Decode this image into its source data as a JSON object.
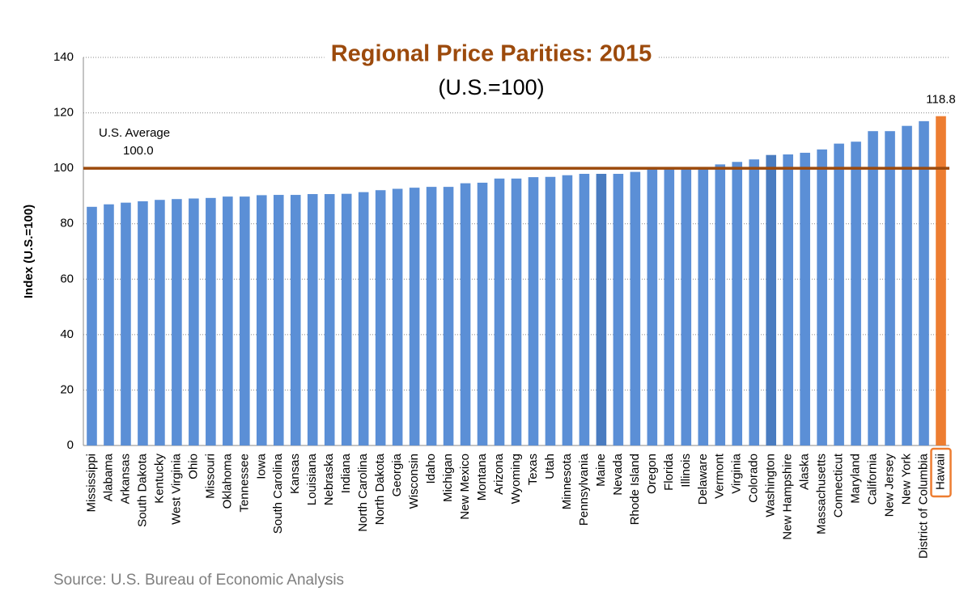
{
  "chart_data": {
    "type": "bar",
    "title": "Regional Price Parities: 2015",
    "subtitle": "(U.S.=100)",
    "y_label": "Index (U.S.=100)",
    "source": "Source: U.S. Bureau of Economic Analysis",
    "categories": [
      "Mississippi",
      "Alabama",
      "Arkansas",
      "South Dakota",
      "Kentucky",
      "West Virginia",
      "Ohio",
      "Missouri",
      "Oklahoma",
      "Tennessee",
      "Iowa",
      "South Carolina",
      "Kansas",
      "Louisiana",
      "Nebraska",
      "Indiana",
      "North Carolina",
      "North Dakota",
      "Georgia",
      "Wisconsin",
      "Idaho",
      "Michigan",
      "New Mexico",
      "Montana",
      "Arizona",
      "Wyoming",
      "Texas",
      "Utah",
      "Minnesota",
      "Pennsylvania",
      "Maine",
      "Nevada",
      "Rhode Island",
      "Oregon",
      "Florida",
      "Illinois",
      "Delaware",
      "Vermont",
      "Virginia",
      "Colorado",
      "Washington",
      "New Hampshire",
      "Alaska",
      "Massachusetts",
      "Connecticut",
      "Maryland",
      "California",
      "New Jersey",
      "New York",
      "District of Columbia",
      "Hawaii"
    ],
    "values": [
      86.1,
      87.0,
      87.6,
      88.1,
      88.6,
      88.9,
      89.1,
      89.3,
      89.8,
      89.8,
      90.3,
      90.4,
      90.4,
      90.7,
      90.7,
      90.8,
      91.4,
      92.1,
      92.6,
      93.0,
      93.3,
      93.3,
      94.6,
      94.8,
      96.3,
      96.3,
      96.8,
      96.9,
      97.5,
      98.0,
      98.0,
      98.0,
      98.7,
      99.6,
      99.9,
      100.0,
      100.0,
      101.4,
      102.3,
      103.2,
      104.8,
      105.0,
      105.6,
      106.8,
      108.9,
      109.6,
      113.4,
      113.4,
      115.3,
      117.0,
      118.8
    ],
    "value_labels": [
      null,
      null,
      null,
      null,
      null,
      null,
      null,
      null,
      null,
      null,
      null,
      null,
      null,
      null,
      null,
      null,
      null,
      null,
      null,
      null,
      null,
      null,
      null,
      null,
      null,
      null,
      null,
      null,
      null,
      null,
      null,
      null,
      null,
      null,
      null,
      null,
      null,
      null,
      null,
      null,
      null,
      null,
      null,
      null,
      null,
      null,
      null,
      null,
      null,
      null,
      "118.8"
    ],
    "color": "#5b8fd6",
    "highlight_color": "#ed7d31",
    "colors": [
      "#5b8fd6",
      "#5b8fd6",
      "#5b8fd6",
      "#5b8fd6",
      "#5b8fd6",
      "#5b8fd6",
      "#5b8fd6",
      "#5b8fd6",
      "#5b8fd6",
      "#5b8fd6",
      "#5b8fd6",
      "#5b8fd6",
      "#5b8fd6",
      "#5b8fd6",
      "#5b8fd6",
      "#5b8fd6",
      "#5b8fd6",
      "#5b8fd6",
      "#5b8fd6",
      "#5b8fd6",
      "#5b8fd6",
      "#5b8fd6",
      "#5b8fd6",
      "#5b8fd6",
      "#5b8fd6",
      "#5b8fd6",
      "#5b8fd6",
      "#5b8fd6",
      "#5b8fd6",
      "#5b8fd6",
      "#4a7cc0",
      "#5b8fd6",
      "#5b8fd6",
      "#5b8fd6",
      "#5b8fd6",
      "#5b8fd6",
      "#5b8fd6",
      "#5b8fd6",
      "#5b8fd6",
      "#5b8fd6",
      "#4a7cc0",
      "#5b8fd6",
      "#5b8fd6",
      "#5b8fd6",
      "#5b8fd6",
      "#5b8fd6",
      "#5b8fd6",
      "#5b8fd6",
      "#5b8fd6",
      "#5b8fd6",
      "#ed7d31"
    ],
    "reference_line": {
      "name": "U.S. Average",
      "value": 100,
      "value_label": "100.0",
      "color": "#9c4a0c"
    },
    "ylim": [
      0,
      140
    ],
    "yticks": [
      0,
      20,
      40,
      60,
      80,
      100,
      120,
      140
    ],
    "grid": true
  }
}
